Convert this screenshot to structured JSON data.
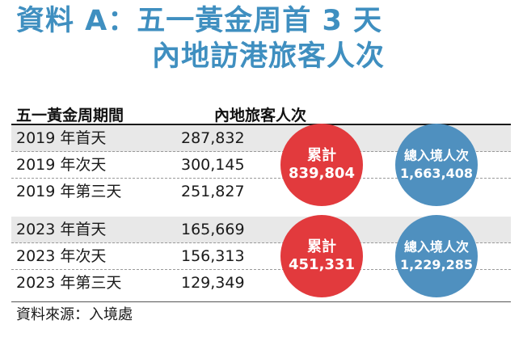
{
  "header": {
    "title_line1": "資料 A：五一黃金周首 3 天",
    "title_line2": "內地訪港旅客人次",
    "col_period": "五一黃金周期間",
    "col_visitors": "內地旅客人次"
  },
  "chart_data": {
    "type": "table",
    "columns": [
      "五一黃金周期間",
      "內地旅客人次"
    ],
    "groups": [
      {
        "rows": [
          {
            "label": "2019 年首天",
            "value": "287,832"
          },
          {
            "label": "2019 年次天",
            "value": "300,145"
          },
          {
            "label": "2019 年第三天",
            "value": "251,827"
          }
        ],
        "total_label": "累計",
        "total_value": "839,804",
        "overall_label": "總入境人次",
        "overall_value": "1,663,408"
      },
      {
        "rows": [
          {
            "label": "2023 年首天",
            "value": "165,669"
          },
          {
            "label": "2023 年次天",
            "value": "156,313"
          },
          {
            "label": "2023 年第三天",
            "value": "129,349"
          }
        ],
        "total_label": "累計",
        "total_value": "451,331",
        "overall_label": "總入境人次",
        "overall_value": "1,229,285"
      }
    ]
  },
  "footer": {
    "source": "資料來源：入境處"
  },
  "colors": {
    "title": "#3f8fc0",
    "total_circle": "#e23a3d",
    "overall_circle": "#4f90bf",
    "row_shade": "#e8e8e8"
  }
}
